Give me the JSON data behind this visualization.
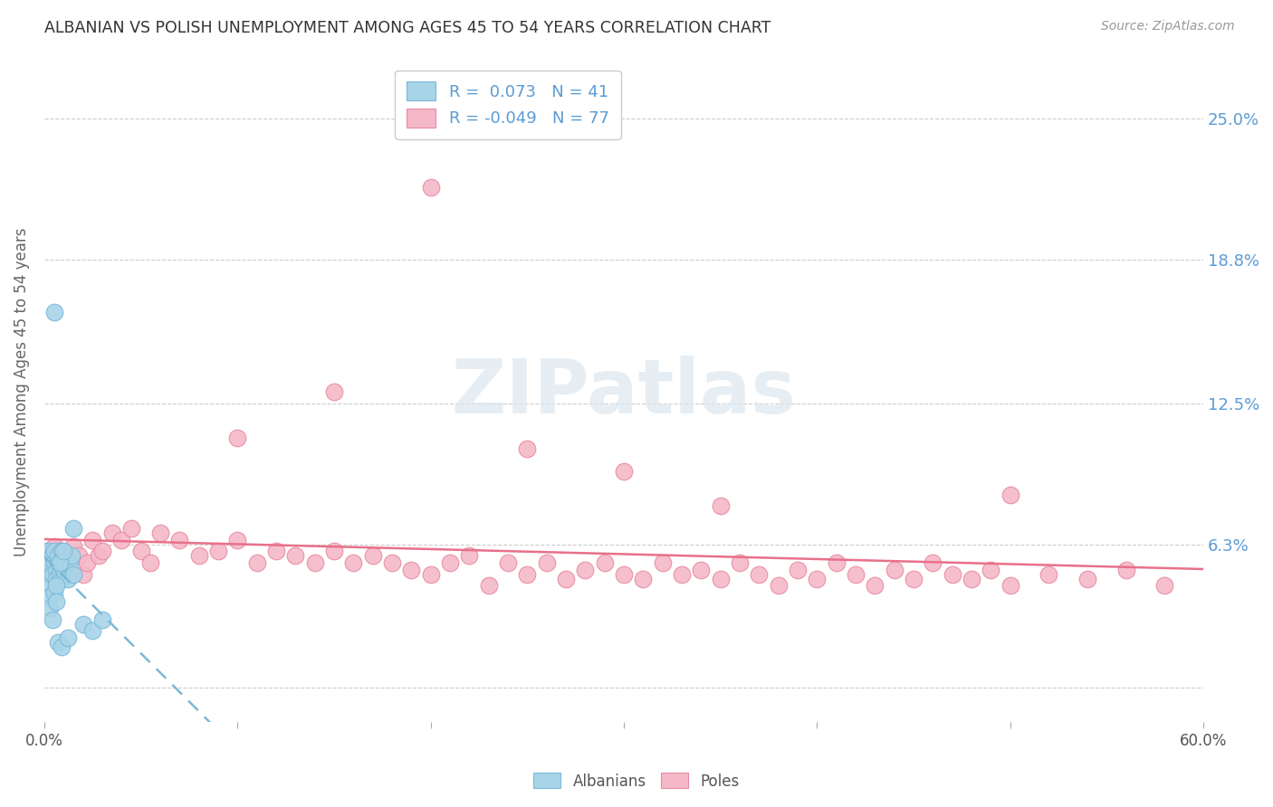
{
  "title": "ALBANIAN VS POLISH UNEMPLOYMENT AMONG AGES 45 TO 54 YEARS CORRELATION CHART",
  "source": "Source: ZipAtlas.com",
  "ylabel": "Unemployment Among Ages 45 to 54 years",
  "xlim": [
    0,
    0.6
  ],
  "ylim": [
    -0.015,
    0.275
  ],
  "yticks": [
    0.0,
    0.063,
    0.125,
    0.188,
    0.25
  ],
  "ytick_labels": [
    "",
    "6.3%",
    "12.5%",
    "18.8%",
    "25.0%"
  ],
  "xticks": [
    0.0,
    0.1,
    0.2,
    0.3,
    0.4,
    0.5,
    0.6
  ],
  "xtick_labels_show": [
    "0.0%",
    "",
    "",
    "",
    "",
    "",
    "60.0%"
  ],
  "albanian_color": "#a8d4e8",
  "albanian_edge_color": "#7ab8d9",
  "polish_color": "#f5b8c8",
  "polish_edge_color": "#e88aa0",
  "albanian_R": 0.073,
  "albanian_N": 41,
  "polish_R": -0.049,
  "polish_N": 77,
  "albanian_trend_color": "#7ab8d9",
  "polish_trend_color": "#e8708a",
  "albanian_scatter_x": [
    0.001,
    0.002,
    0.002,
    0.003,
    0.003,
    0.004,
    0.004,
    0.005,
    0.005,
    0.006,
    0.006,
    0.007,
    0.007,
    0.008,
    0.008,
    0.009,
    0.009,
    0.01,
    0.01,
    0.011,
    0.011,
    0.012,
    0.013,
    0.014,
    0.015,
    0.002,
    0.003,
    0.005,
    0.006,
    0.008,
    0.01,
    0.015,
    0.02,
    0.025,
    0.03,
    0.005,
    0.006,
    0.004,
    0.007,
    0.009,
    0.012
  ],
  "albanian_scatter_y": [
    0.055,
    0.05,
    0.06,
    0.055,
    0.045,
    0.058,
    0.05,
    0.055,
    0.06,
    0.052,
    0.048,
    0.055,
    0.058,
    0.05,
    0.055,
    0.048,
    0.06,
    0.052,
    0.058,
    0.05,
    0.055,
    0.048,
    0.055,
    0.058,
    0.07,
    0.04,
    0.035,
    0.042,
    0.045,
    0.055,
    0.06,
    0.05,
    0.028,
    0.025,
    0.03,
    0.165,
    0.038,
    0.03,
    0.02,
    0.018,
    0.022
  ],
  "polish_scatter_x": [
    0.002,
    0.003,
    0.004,
    0.005,
    0.006,
    0.007,
    0.008,
    0.01,
    0.012,
    0.015,
    0.018,
    0.02,
    0.022,
    0.025,
    0.028,
    0.03,
    0.035,
    0.04,
    0.045,
    0.05,
    0.055,
    0.06,
    0.07,
    0.08,
    0.09,
    0.1,
    0.11,
    0.12,
    0.13,
    0.14,
    0.15,
    0.16,
    0.17,
    0.18,
    0.19,
    0.2,
    0.21,
    0.22,
    0.23,
    0.24,
    0.25,
    0.26,
    0.27,
    0.28,
    0.29,
    0.3,
    0.31,
    0.32,
    0.33,
    0.34,
    0.35,
    0.36,
    0.37,
    0.38,
    0.39,
    0.4,
    0.41,
    0.42,
    0.43,
    0.44,
    0.45,
    0.46,
    0.47,
    0.48,
    0.49,
    0.5,
    0.52,
    0.54,
    0.56,
    0.58,
    0.25,
    0.3,
    0.35,
    0.2,
    0.15,
    0.1,
    0.5
  ],
  "polish_scatter_y": [
    0.06,
    0.055,
    0.058,
    0.062,
    0.05,
    0.055,
    0.06,
    0.058,
    0.055,
    0.062,
    0.058,
    0.05,
    0.055,
    0.065,
    0.058,
    0.06,
    0.068,
    0.065,
    0.07,
    0.06,
    0.055,
    0.068,
    0.065,
    0.058,
    0.06,
    0.065,
    0.055,
    0.06,
    0.058,
    0.055,
    0.06,
    0.055,
    0.058,
    0.055,
    0.052,
    0.05,
    0.055,
    0.058,
    0.045,
    0.055,
    0.05,
    0.055,
    0.048,
    0.052,
    0.055,
    0.05,
    0.048,
    0.055,
    0.05,
    0.052,
    0.048,
    0.055,
    0.05,
    0.045,
    0.052,
    0.048,
    0.055,
    0.05,
    0.045,
    0.052,
    0.048,
    0.055,
    0.05,
    0.048,
    0.052,
    0.045,
    0.05,
    0.048,
    0.052,
    0.045,
    0.105,
    0.095,
    0.08,
    0.22,
    0.13,
    0.11,
    0.085
  ],
  "background_color": "#ffffff",
  "grid_color": "#cccccc",
  "title_color": "#333333",
  "right_label_color": "#5b9bd5",
  "watermark_color": "#dce8f0",
  "legend_albanian_label": "Albanians",
  "legend_polish_label": "Poles"
}
